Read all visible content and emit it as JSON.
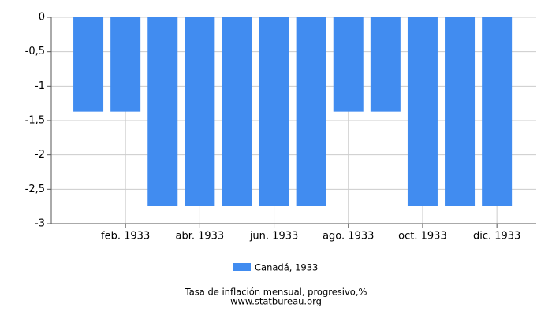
{
  "chart_data": {
    "type": "bar",
    "title": "Tasa de inflación mensual, progresivo,%",
    "subtitle": "www.statbureau.org",
    "categories": [
      null,
      "feb. 1933",
      null,
      "abr. 1933",
      null,
      "jun. 1933",
      null,
      "ago. 1933",
      null,
      "oct. 1933",
      null,
      "dic. 1933"
    ],
    "series": [
      {
        "name": "Canadá, 1933",
        "color": "#418cf0",
        "values": [
          -1.37,
          -1.37,
          -2.74,
          -2.74,
          -2.74,
          -2.74,
          -2.74,
          -1.37,
          -1.37,
          -2.74,
          -2.74,
          -2.74
        ]
      }
    ],
    "ylim": [
      -3,
      0
    ],
    "yticks": [
      0,
      {
        "value": -0.5,
        "label": "-0,5"
      },
      -1,
      {
        "value": -1.5,
        "label": "-1,5"
      },
      -2,
      {
        "value": -2.5,
        "label": "-2,5"
      },
      -3
    ],
    "grid": true
  }
}
